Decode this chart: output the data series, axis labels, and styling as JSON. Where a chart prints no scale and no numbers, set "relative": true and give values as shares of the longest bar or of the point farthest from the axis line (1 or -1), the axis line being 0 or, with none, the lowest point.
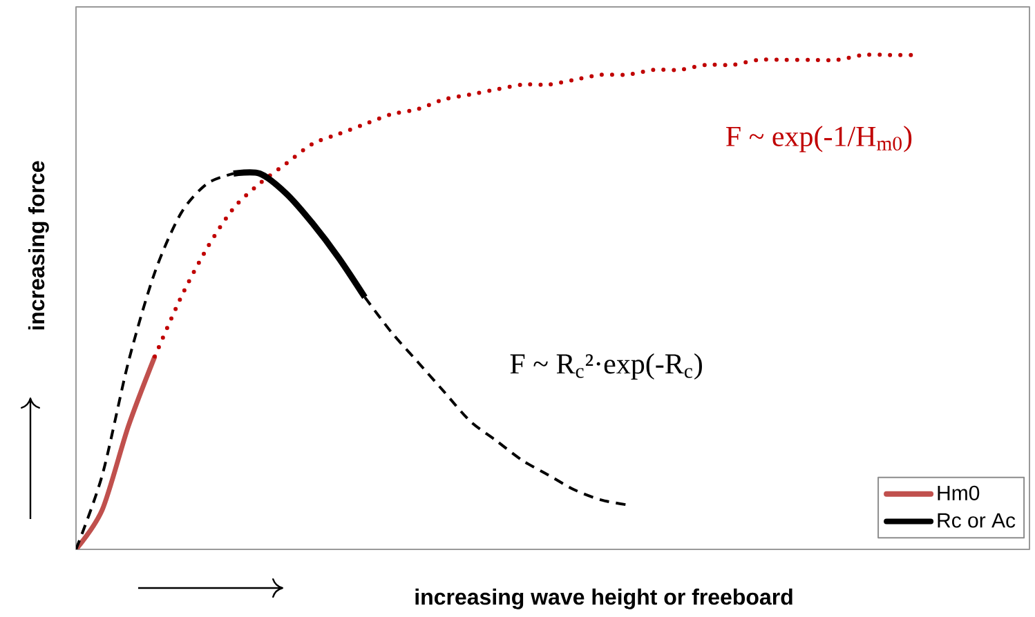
{
  "chart_data": {
    "type": "line",
    "relative": true,
    "xlabel": "increasing wave height or freeboard",
    "ylabel": "increasing force",
    "categories": [
      null,
      null,
      null,
      null,
      null,
      null,
      null,
      null,
      null,
      null,
      null,
      null,
      null,
      null,
      null,
      null,
      null,
      null,
      null,
      null,
      null,
      null,
      null,
      null,
      null,
      null,
      null,
      null,
      null,
      null,
      null,
      null,
      null
    ],
    "series": [
      {
        "name": "Hm0",
        "color": "#c0504d",
        "line_style": "solid",
        "values": [
          0.0,
          0.08,
          0.25,
          0.39,
          null,
          null,
          null,
          null,
          null,
          null,
          null,
          null,
          null,
          null,
          null,
          null,
          null,
          null,
          null,
          null,
          null,
          null,
          null,
          null,
          null,
          null,
          null,
          null,
          null,
          null,
          null,
          null,
          null
        ]
      },
      {
        "color": "#c00000",
        "line_style": "dotted",
        "values": [
          null,
          null,
          null,
          0.39,
          0.51,
          0.61,
          0.69,
          0.74,
          0.78,
          0.82,
          0.84,
          0.86,
          0.88,
          0.89,
          0.91,
          0.92,
          0.93,
          0.94,
          0.94,
          0.95,
          0.96,
          0.96,
          0.97,
          0.97,
          0.98,
          0.98,
          0.99,
          0.99,
          0.99,
          0.99,
          1.0,
          1.0,
          1.0
        ]
      },
      {
        "color": "#000000",
        "line_style": "dashed",
        "values": [
          0.0,
          0.15,
          0.38,
          0.56,
          0.68,
          0.74,
          0.76,
          null,
          null,
          null,
          null,
          null,
          null,
          null,
          null,
          null,
          null,
          null,
          null,
          null,
          null,
          null,
          null,
          null,
          null,
          null,
          null,
          null,
          null,
          null,
          null,
          null,
          null
        ]
      },
      {
        "name": "Rc or Ac",
        "color": "#000000",
        "line_style": "solid",
        "values": [
          null,
          null,
          null,
          null,
          null,
          null,
          0.76,
          0.76,
          0.72,
          0.66,
          0.59,
          0.51,
          null,
          null,
          null,
          null,
          null,
          null,
          null,
          null,
          null,
          null,
          null,
          null,
          null,
          null,
          null,
          null,
          null,
          null,
          null,
          null,
          null
        ]
      },
      {
        "color": "#000000",
        "line_style": "dashed",
        "values": [
          null,
          null,
          null,
          null,
          null,
          null,
          null,
          null,
          null,
          null,
          null,
          0.51,
          0.44,
          0.38,
          0.32,
          0.26,
          0.22,
          0.18,
          0.15,
          0.12,
          0.1,
          0.09,
          null,
          null,
          null,
          null,
          null,
          null,
          null,
          null,
          null,
          null,
          null
        ]
      }
    ],
    "annotations": [
      "F ~ exp(-1/H$_{m0}$)",
      "F ~ R$_{c}$²·exp(-R$_{c}$)"
    ],
    "legend": "bottom right",
    "marker": "none"
  }
}
